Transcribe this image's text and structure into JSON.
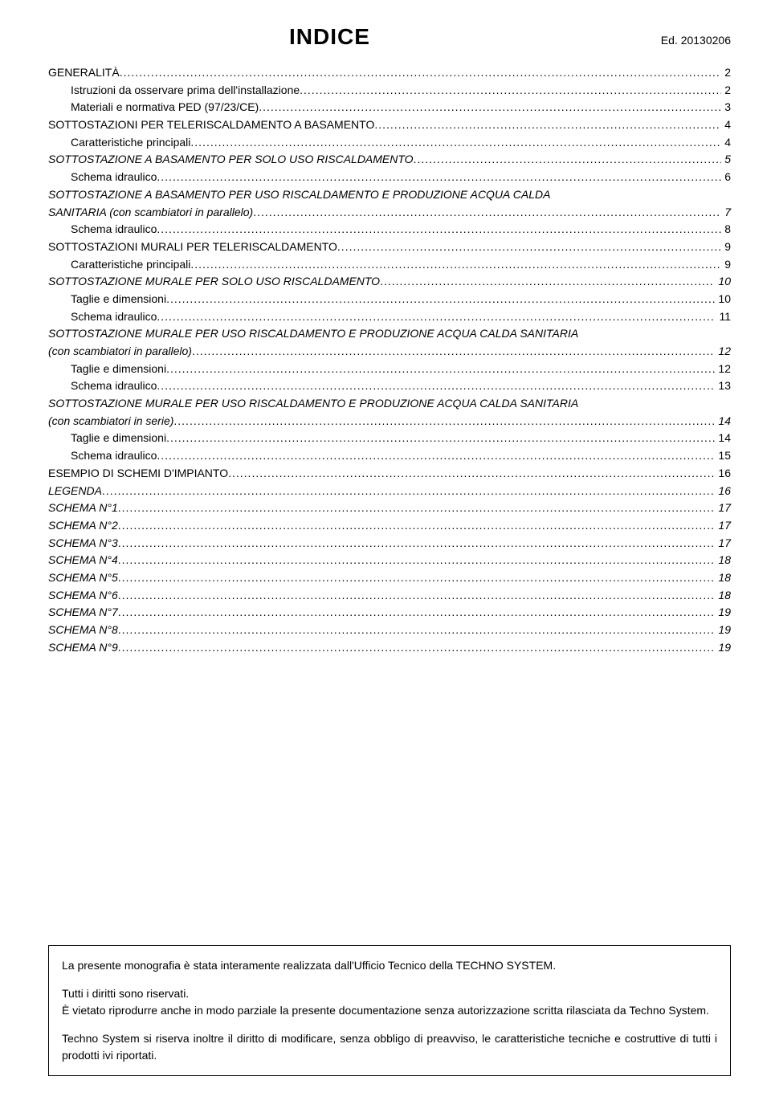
{
  "header": {
    "title": "INDICE",
    "edition": "Ed. 20130206"
  },
  "toc": [
    {
      "label": "GENERALITÀ",
      "page": "2",
      "indent": 0,
      "italic": false
    },
    {
      "label": "Istruzioni da osservare prima dell'installazione",
      "page": "2",
      "indent": 1,
      "italic": false
    },
    {
      "label": "Materiali e normativa PED (97/23/CE)",
      "page": "3",
      "indent": 1,
      "italic": false
    },
    {
      "label": "SOTTOSTAZIONI PER TELERISCALDAMENTO A BASAMENTO",
      "page": "4",
      "indent": 0,
      "italic": false
    },
    {
      "label": "Caratteristiche principali",
      "page": "4",
      "indent": 1,
      "italic": false
    },
    {
      "label": "SOTTOSTAZIONE A BASAMENTO PER SOLO USO RISCALDAMENTO",
      "page": "5",
      "indent": 0,
      "italic": true
    },
    {
      "label": "Schema idraulico",
      "page": "6",
      "indent": 1,
      "italic": false
    },
    {
      "label": "SOTTOSTAZIONE A BASAMENTO PER USO RISCALDAMENTO E PRODUZIONE ACQUA CALDA",
      "indent": 0,
      "italic": true,
      "continued": true
    },
    {
      "label": "SANITARIA (con scambiatori in parallelo)",
      "page": "7",
      "indent": 0,
      "italic": true
    },
    {
      "label": "Schema idraulico",
      "page": "8",
      "indent": 1,
      "italic": false
    },
    {
      "label": "SOTTOSTAZIONI MURALI PER TELERISCALDAMENTO",
      "page": "9",
      "indent": 0,
      "italic": false
    },
    {
      "label": "Caratteristiche principali",
      "page": "9",
      "indent": 1,
      "italic": false
    },
    {
      "label": "SOTTOSTAZIONE MURALE PER SOLO USO RISCALDAMENTO",
      "page": "10",
      "indent": 0,
      "italic": true
    },
    {
      "label": "Taglie e dimensioni",
      "page": "10",
      "indent": 1,
      "italic": false
    },
    {
      "label": "Schema idraulico",
      "page": "11",
      "indent": 1,
      "italic": false
    },
    {
      "label": "SOTTOSTAZIONE MURALE PER USO RISCALDAMENTO E PRODUZIONE ACQUA CALDA SANITARIA",
      "indent": 0,
      "italic": true,
      "continued": true
    },
    {
      "label": "(con scambiatori in parallelo)",
      "page": "12",
      "indent": 0,
      "italic": true
    },
    {
      "label": "Taglie e dimensioni",
      "page": "12",
      "indent": 1,
      "italic": false
    },
    {
      "label": "Schema idraulico",
      "page": "13",
      "indent": 1,
      "italic": false
    },
    {
      "label": "SOTTOSTAZIONE MURALE PER USO RISCALDAMENTO E PRODUZIONE ACQUA CALDA SANITARIA",
      "indent": 0,
      "italic": true,
      "continued": true
    },
    {
      "label": "(con scambiatori in serie)",
      "page": "14",
      "indent": 0,
      "italic": true
    },
    {
      "label": "Taglie e dimensioni",
      "page": "14",
      "indent": 1,
      "italic": false
    },
    {
      "label": "Schema idraulico",
      "page": "15",
      "indent": 1,
      "italic": false
    },
    {
      "label": "ESEMPIO DI SCHEMI D'IMPIANTO",
      "page": "16",
      "indent": 0,
      "italic": false
    },
    {
      "label": "LEGENDA",
      "page": "16",
      "indent": 0,
      "italic": true
    },
    {
      "label": "SCHEMA N°1",
      "page": "17",
      "indent": 0,
      "italic": true
    },
    {
      "label": "SCHEMA N°2",
      "page": "17",
      "indent": 0,
      "italic": true
    },
    {
      "label": "SCHEMA N°3",
      "page": "17",
      "indent": 0,
      "italic": true
    },
    {
      "label": "SCHEMA N°4",
      "page": "18",
      "indent": 0,
      "italic": true
    },
    {
      "label": "SCHEMA N°5",
      "page": "18",
      "indent": 0,
      "italic": true
    },
    {
      "label": "SCHEMA N°6",
      "page": "18",
      "indent": 0,
      "italic": true
    },
    {
      "label": "SCHEMA N°7",
      "page": "19",
      "indent": 0,
      "italic": true
    },
    {
      "label": "SCHEMA N°8",
      "page": "19",
      "indent": 0,
      "italic": true
    },
    {
      "label": "SCHEMA N°9",
      "page": "19",
      "indent": 0,
      "italic": true
    }
  ],
  "footer": {
    "p1": "La presente monografia è stata interamente realizzata dall'Ufficio Tecnico della TECHNO SYSTEM.",
    "p2a": "Tutti i diritti sono riservati.",
    "p2b": "È vietato riprodurre anche in modo parziale la presente documentazione senza autorizzazione scritta rilasciata da Techno System.",
    "p3": "Techno System si riserva inoltre il diritto di modificare, senza obbligo di preavviso, le caratteristiche tecniche e costruttive di tutti i prodotti ivi riportati."
  }
}
